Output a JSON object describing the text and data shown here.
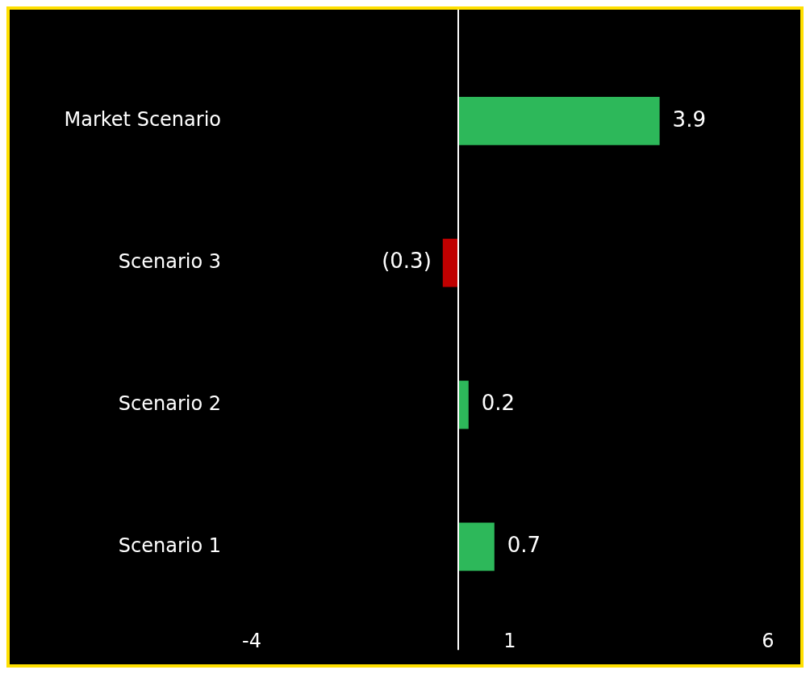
{
  "chart_data": {
    "type": "bar",
    "orientation": "horizontal",
    "categories": [
      "Market Scenario",
      "Scenario 3",
      "Scenario 2",
      "Scenario 1"
    ],
    "values": [
      3.9,
      -0.3,
      0.2,
      0.7
    ],
    "colors": [
      "#2db85a",
      "#c00000",
      "#2db85a",
      "#2db85a"
    ],
    "value_labels": [
      "3.9",
      "(0.3)",
      "0.2",
      "0.7"
    ],
    "xlim": [
      -4,
      6
    ],
    "xticks": [
      -4,
      1,
      6
    ],
    "ref_lines": [
      {
        "axis": "x",
        "value": 0,
        "color": "#ffffff"
      }
    ],
    "grid": false,
    "legend": false
  }
}
